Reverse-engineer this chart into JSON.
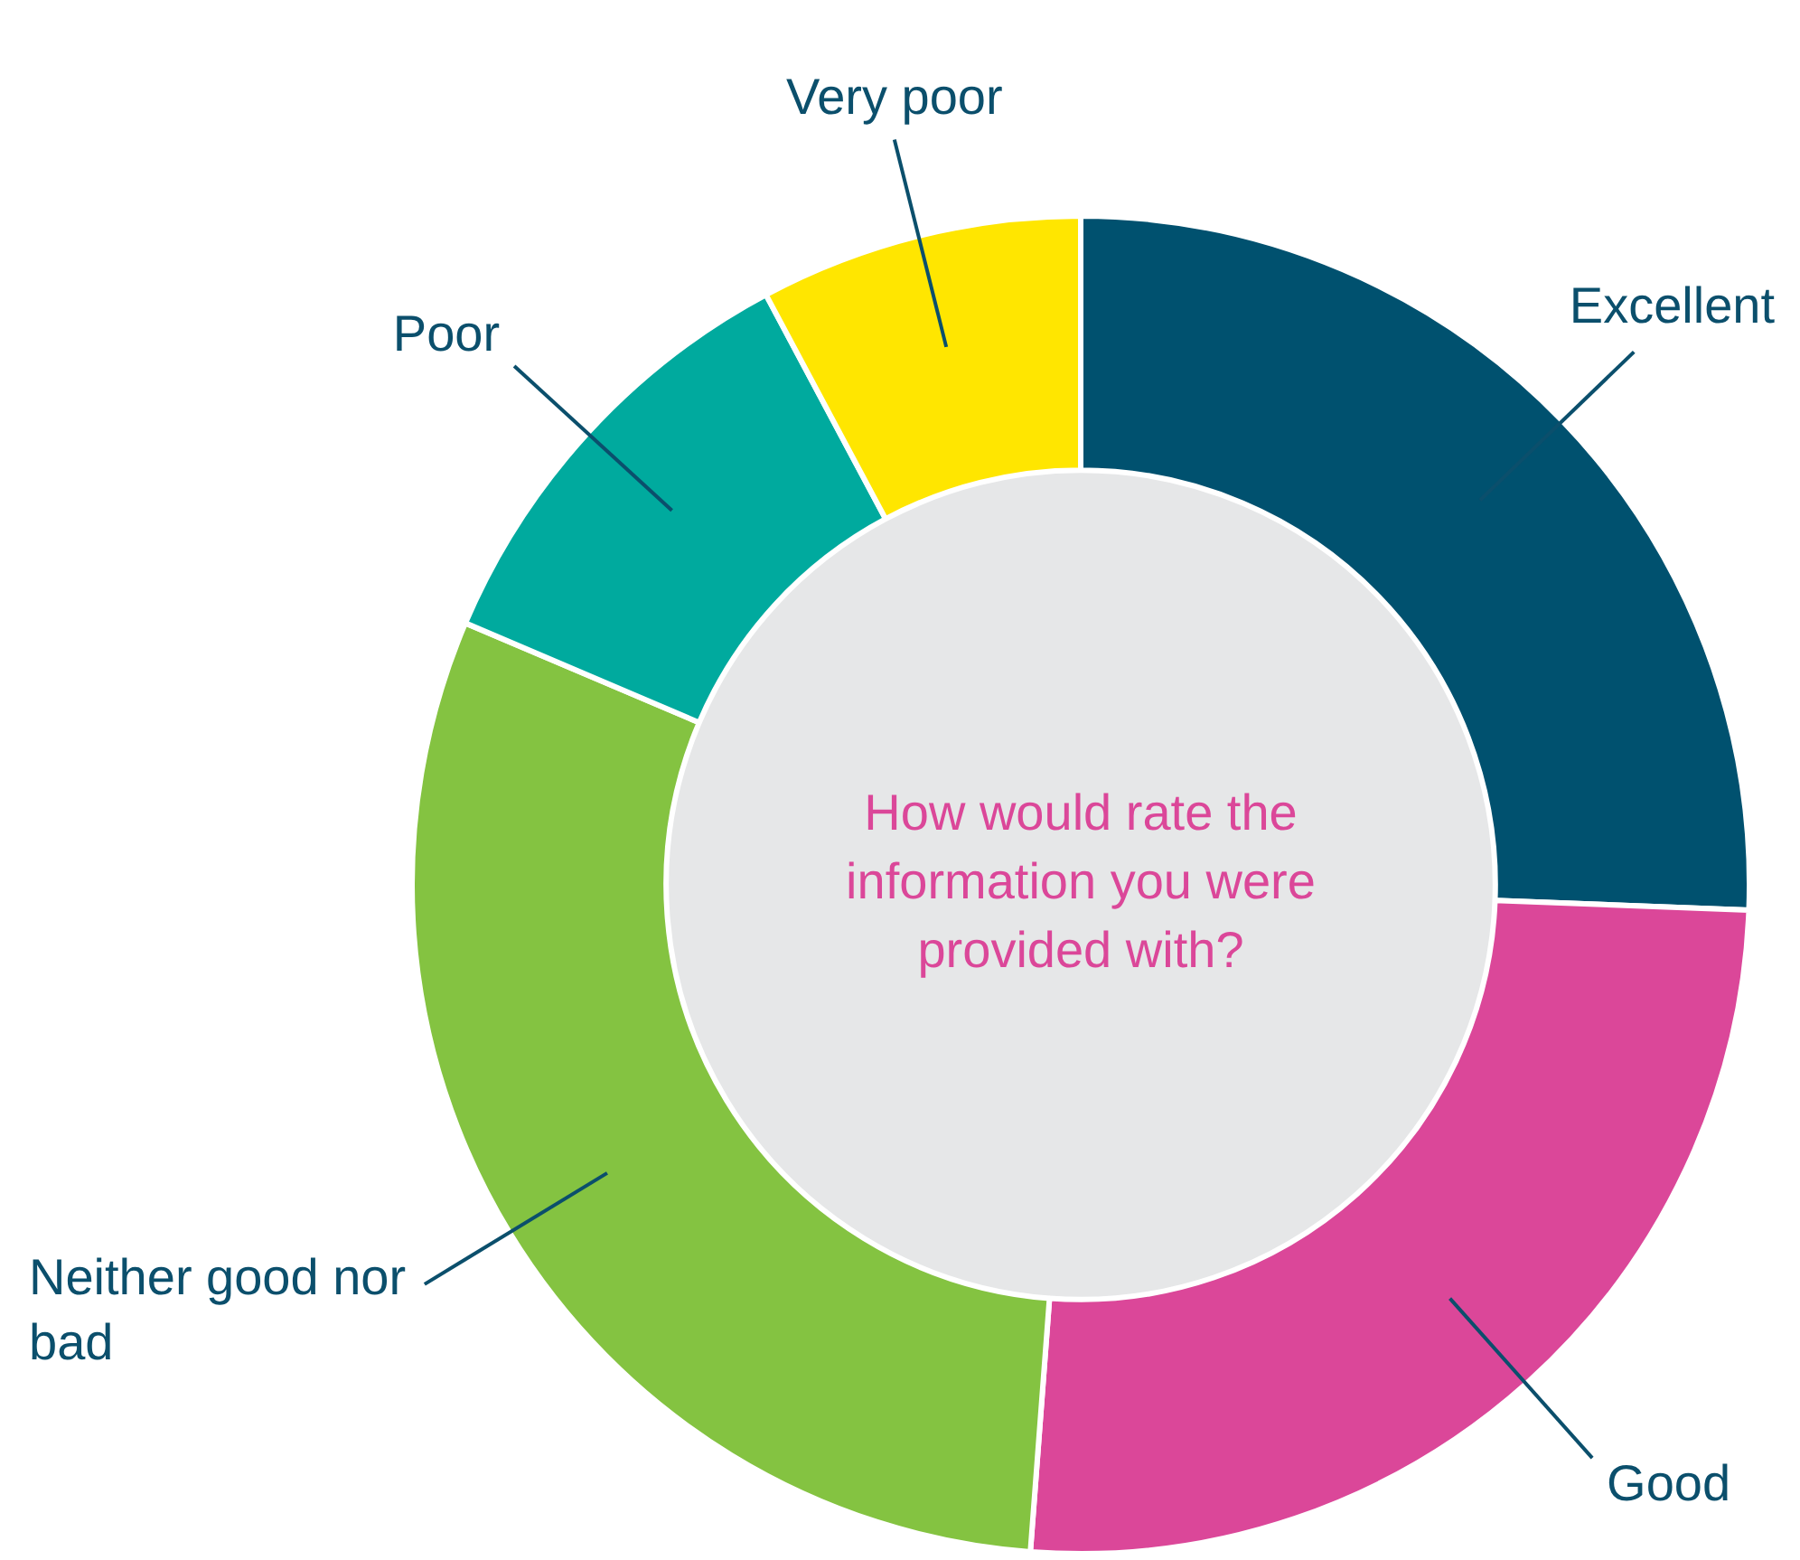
{
  "chart_data": {
    "type": "donut",
    "title": "How would rate the information you were provided with?",
    "categories": [
      "Excellent",
      "Good",
      "Neither good nor bad",
      "Poor",
      "Very poor"
    ],
    "values": [
      25.6,
      25.6,
      30.2,
      10.8,
      7.8
    ],
    "colors": [
      "#00516f",
      "#db4799",
      "#84c341",
      "#00aa9e",
      "#ffe600"
    ]
  }
}
